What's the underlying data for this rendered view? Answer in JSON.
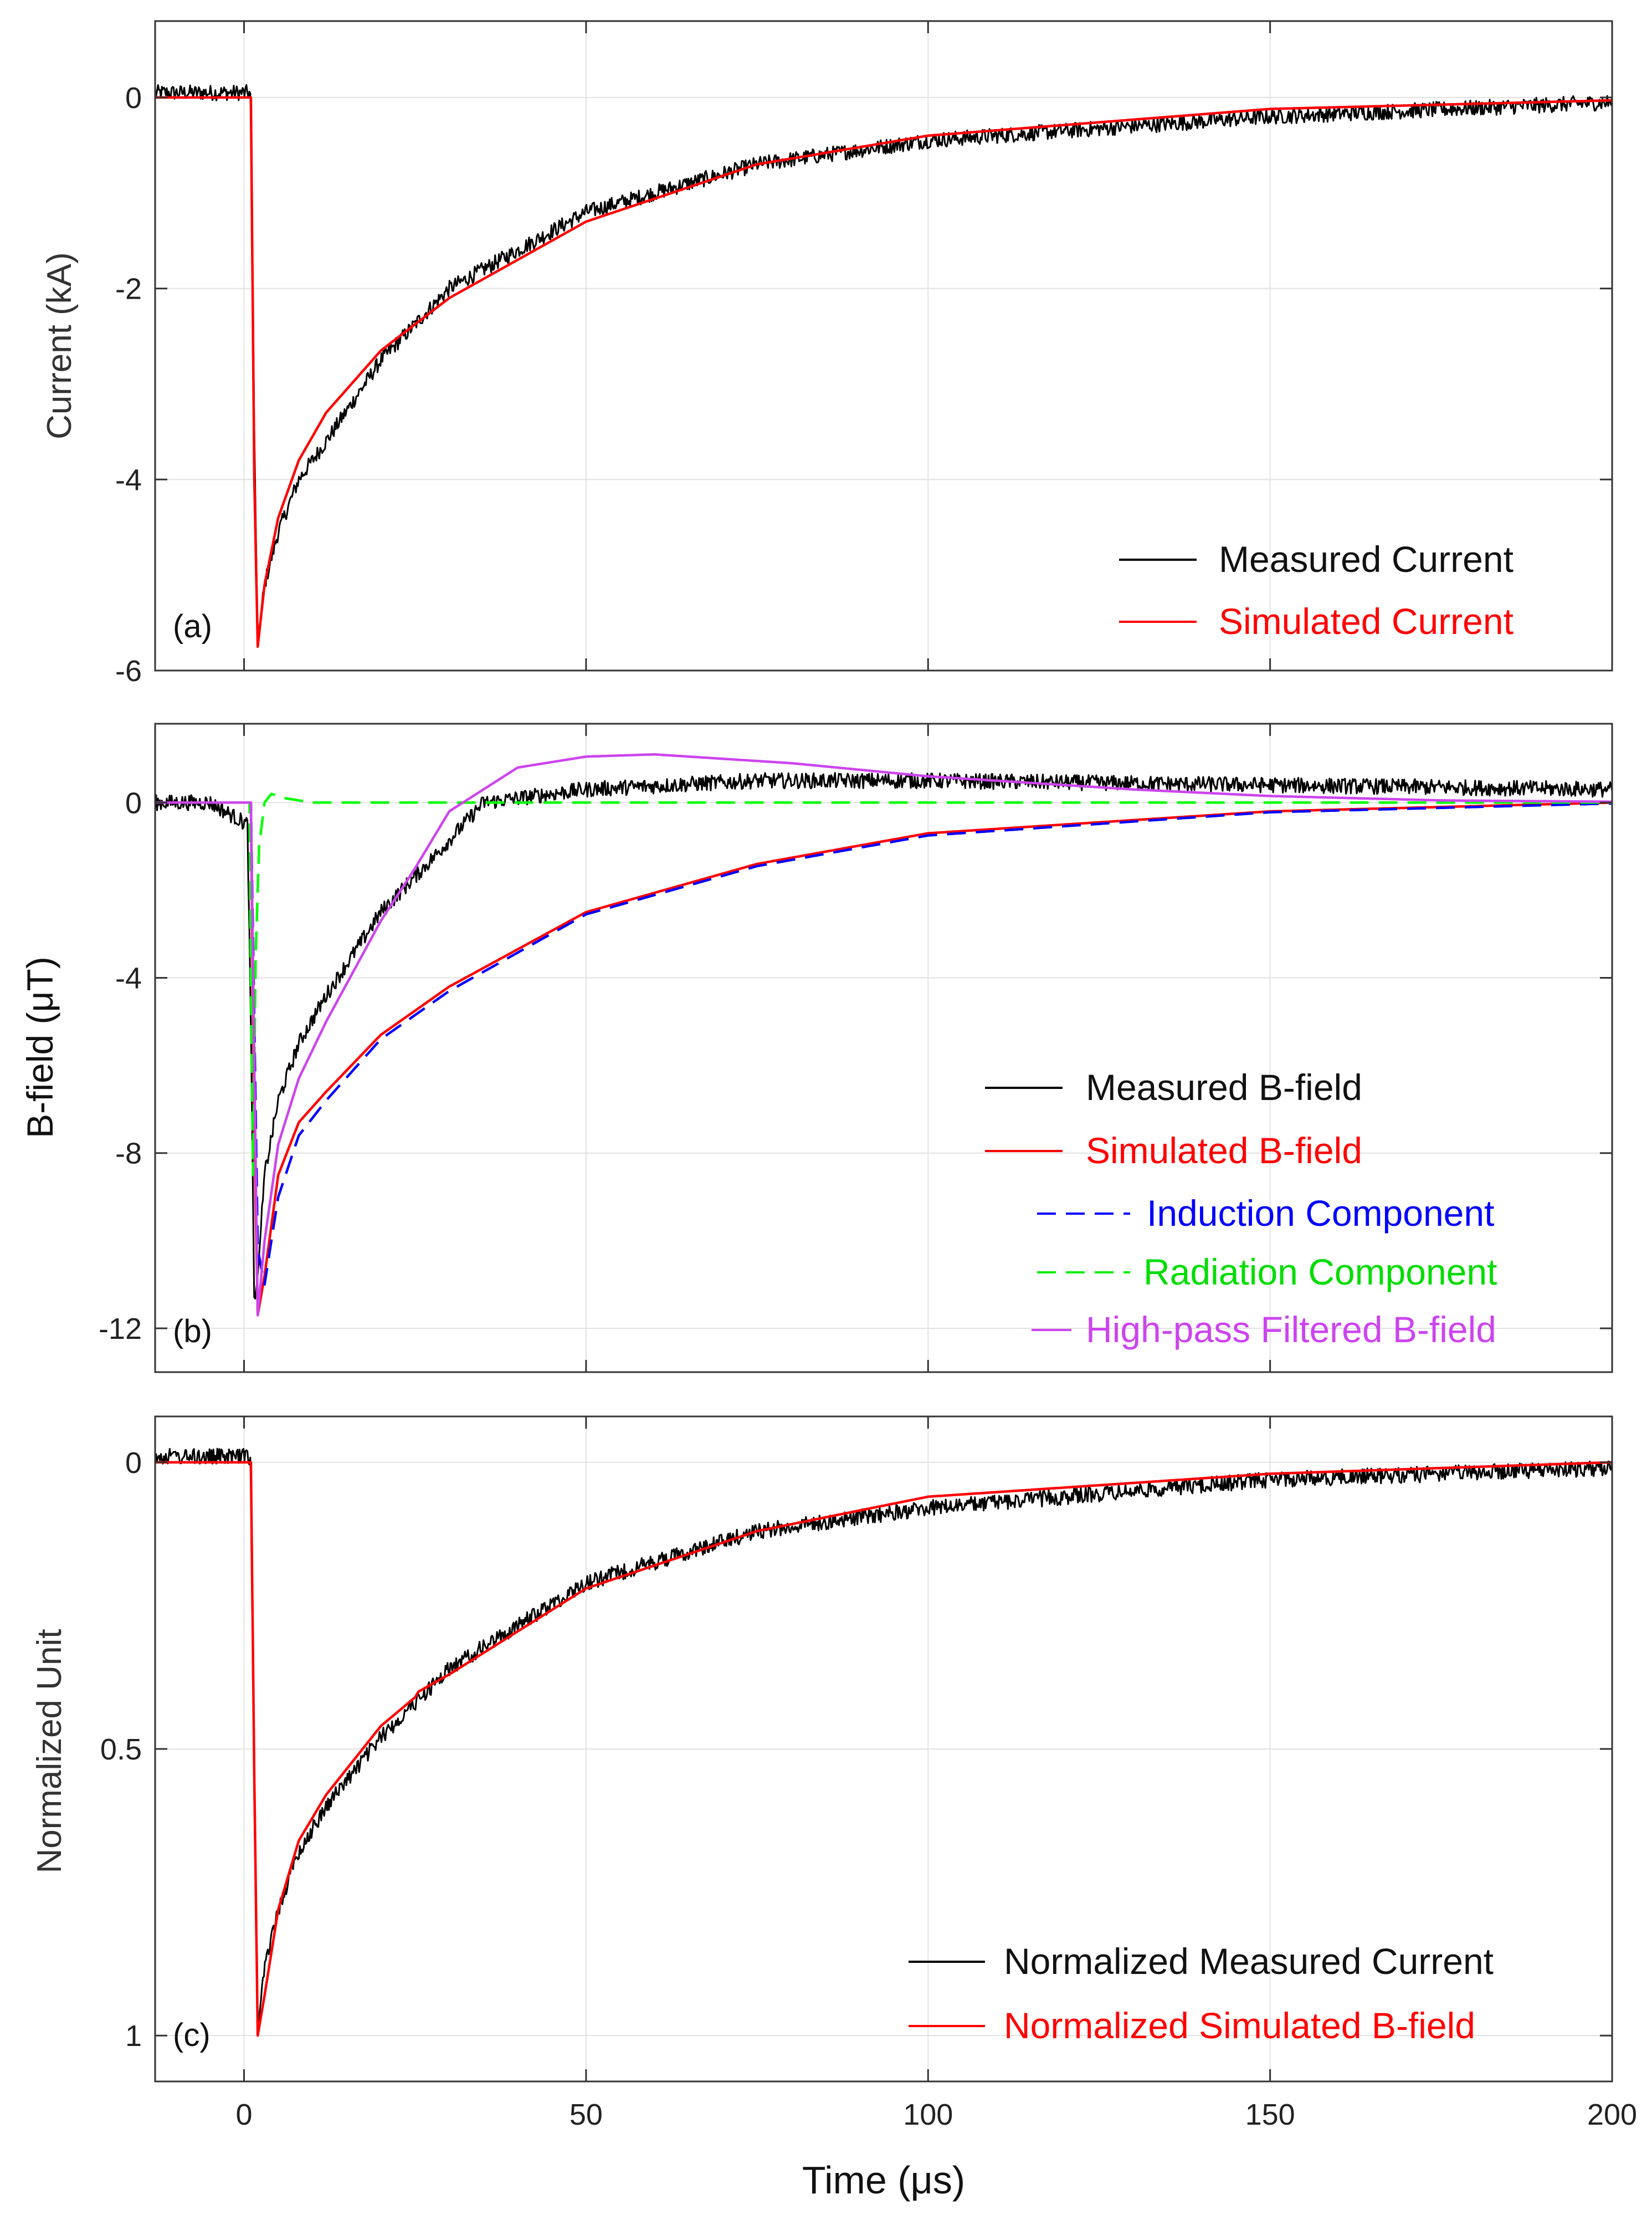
{
  "chart_data": [
    {
      "type": "line",
      "panel_label": "(a)",
      "ylabel": "Current (kA)",
      "xlabel": "",
      "xlim": [
        -13,
        200
      ],
      "ylim": [
        -6,
        0.8
      ],
      "xticks": [
        0,
        50,
        100,
        150,
        200
      ],
      "yticks": [
        0,
        -2,
        -4,
        -6
      ],
      "ytick_labels": [
        "0",
        "-2",
        "-4",
        "-6"
      ],
      "grid": true,
      "legend_position": "bottom-right",
      "series": [
        {
          "name": "Measured Current",
          "color": "#000000",
          "style": "solid",
          "noisy": true,
          "x": [
            -13,
            0.9,
            1.0,
            1.5,
            2,
            3,
            5,
            8,
            12,
            20,
            30,
            50,
            75,
            100,
            150,
            200
          ],
          "y": [
            0.05,
            0.05,
            0,
            -3.5,
            -5.7,
            -5.1,
            -4.55,
            -4.0,
            -3.6,
            -2.75,
            -2.0,
            -1.2,
            -0.7,
            -0.45,
            -0.2,
            -0.05
          ]
        },
        {
          "name": "Simulated Current",
          "color": "#ff0000",
          "style": "solid",
          "noisy": false,
          "x": [
            -13,
            0.9,
            1.0,
            1.5,
            2,
            3,
            5,
            8,
            12,
            20,
            30,
            50,
            75,
            100,
            150,
            200
          ],
          "y": [
            0,
            0,
            0,
            -4.0,
            -5.75,
            -5.1,
            -4.4,
            -3.8,
            -3.3,
            -2.65,
            -2.1,
            -1.3,
            -0.7,
            -0.4,
            -0.12,
            -0.03
          ]
        }
      ]
    },
    {
      "type": "line",
      "panel_label": "(b)",
      "ylabel": "B-field (μT)",
      "xlabel": "",
      "xlim": [
        -13,
        200
      ],
      "ylim": [
        -13,
        1.8
      ],
      "xticks": [
        0,
        50,
        100,
        150,
        200
      ],
      "yticks": [
        0,
        -4,
        -8,
        -12
      ],
      "ytick_labels": [
        "0",
        "-4",
        "-8",
        "-12"
      ],
      "grid": true,
      "legend_position": "bottom-right",
      "series": [
        {
          "name": "Measured B-field",
          "color": "#000000",
          "style": "solid",
          "noisy": true,
          "x": [
            -13,
            -5,
            0.5,
            1,
            1.5,
            2,
            3,
            5,
            8,
            12,
            20,
            28,
            35,
            50,
            75,
            100,
            150,
            200
          ],
          "y": [
            0,
            0,
            -0.5,
            -5,
            -11.5,
            -10.8,
            -8.5,
            -6.8,
            -5.5,
            -4.4,
            -2.5,
            -1.2,
            0,
            0.3,
            0.5,
            0.5,
            0.4,
            0.3
          ]
        },
        {
          "name": "Simulated B-field",
          "color": "#ff0000",
          "style": "solid",
          "noisy": false,
          "x": [
            -13,
            0.9,
            1,
            1.5,
            2,
            3,
            5,
            8,
            12,
            20,
            30,
            50,
            75,
            100,
            150,
            200
          ],
          "y": [
            0,
            0,
            0,
            -7.5,
            -11.7,
            -10.8,
            -8.5,
            -7.3,
            -6.6,
            -5.3,
            -4.2,
            -2.5,
            -1.4,
            -0.7,
            -0.2,
            0
          ]
        },
        {
          "name": "Induction Component",
          "color": "#0000ff",
          "style": "dashed",
          "noisy": false,
          "x": [
            -13,
            0.9,
            1,
            1.5,
            2,
            3,
            5,
            8,
            12,
            20,
            30,
            50,
            75,
            100,
            150,
            200
          ],
          "y": [
            0,
            0,
            0,
            -5.0,
            -10.2,
            -11.0,
            -9.0,
            -7.6,
            -6.8,
            -5.4,
            -4.3,
            -2.55,
            -1.45,
            -0.75,
            -0.22,
            -0.02
          ]
        },
        {
          "name": "Radiation Component",
          "color": "#00ff00",
          "style": "dashed",
          "noisy": false,
          "x": [
            -13,
            0.8,
            1,
            1.3,
            1.7,
            2.2,
            3,
            4,
            6,
            10,
            200
          ],
          "y": [
            0,
            0,
            -4,
            -8.5,
            -3.5,
            -1.0,
            0.0,
            0.2,
            0.1,
            0,
            0
          ]
        },
        {
          "name": "High-pass Filtered B-field",
          "color": "#cc44ee",
          "style": "solid",
          "noisy": false,
          "x": [
            -13,
            0.9,
            1,
            1.5,
            2,
            3,
            5,
            8,
            12,
            20,
            25,
            30,
            40,
            50,
            60,
            70,
            80,
            100,
            130,
            150,
            175,
            200
          ],
          "y": [
            0,
            0,
            0,
            -6,
            -11.7,
            -10.0,
            -7.8,
            -6.3,
            -5.0,
            -2.7,
            -1.5,
            -0.2,
            0.8,
            1.05,
            1.1,
            1.0,
            0.9,
            0.6,
            0.3,
            0.15,
            0.05,
            0.02
          ]
        }
      ]
    },
    {
      "type": "line",
      "panel_label": "(c)",
      "ylabel": "Normalized Unit",
      "xlabel": "Time (μs)",
      "xlim": [
        -13,
        200
      ],
      "ylim": [
        1.08,
        -0.08
      ],
      "xticks": [
        0,
        50,
        100,
        150,
        200
      ],
      "xtick_labels": [
        "0",
        "50",
        "100",
        "150",
        "200"
      ],
      "yticks": [
        0,
        0.5,
        1
      ],
      "ytick_labels": [
        "0",
        "0.5",
        "1"
      ],
      "grid": true,
      "legend_position": "bottom-right",
      "series": [
        {
          "name": "Normalized Measured Current",
          "color": "#000000",
          "style": "solid",
          "noisy": true,
          "x": [
            -13,
            0.9,
            1.0,
            1.5,
            2,
            3,
            5,
            8,
            12,
            20,
            30,
            50,
            75,
            100,
            150,
            200
          ],
          "y": [
            -0.01,
            -0.01,
            0,
            0.6,
            0.99,
            0.88,
            0.78,
            0.68,
            0.6,
            0.48,
            0.36,
            0.21,
            0.12,
            0.08,
            0.03,
            0.01
          ]
        },
        {
          "name": "Normalized Simulated B-field",
          "color": "#ff0000",
          "style": "solid",
          "noisy": false,
          "x": [
            -13,
            0.9,
            1.0,
            1.5,
            2,
            3,
            5,
            8,
            12,
            20,
            25,
            25.5,
            30,
            50,
            75,
            100,
            150,
            200
          ],
          "y": [
            0,
            0,
            0,
            0.55,
            1.0,
            0.93,
            0.78,
            0.66,
            0.58,
            0.46,
            0.41,
            0.4,
            0.37,
            0.22,
            0.12,
            0.06,
            0.02,
            0
          ]
        }
      ]
    }
  ]
}
